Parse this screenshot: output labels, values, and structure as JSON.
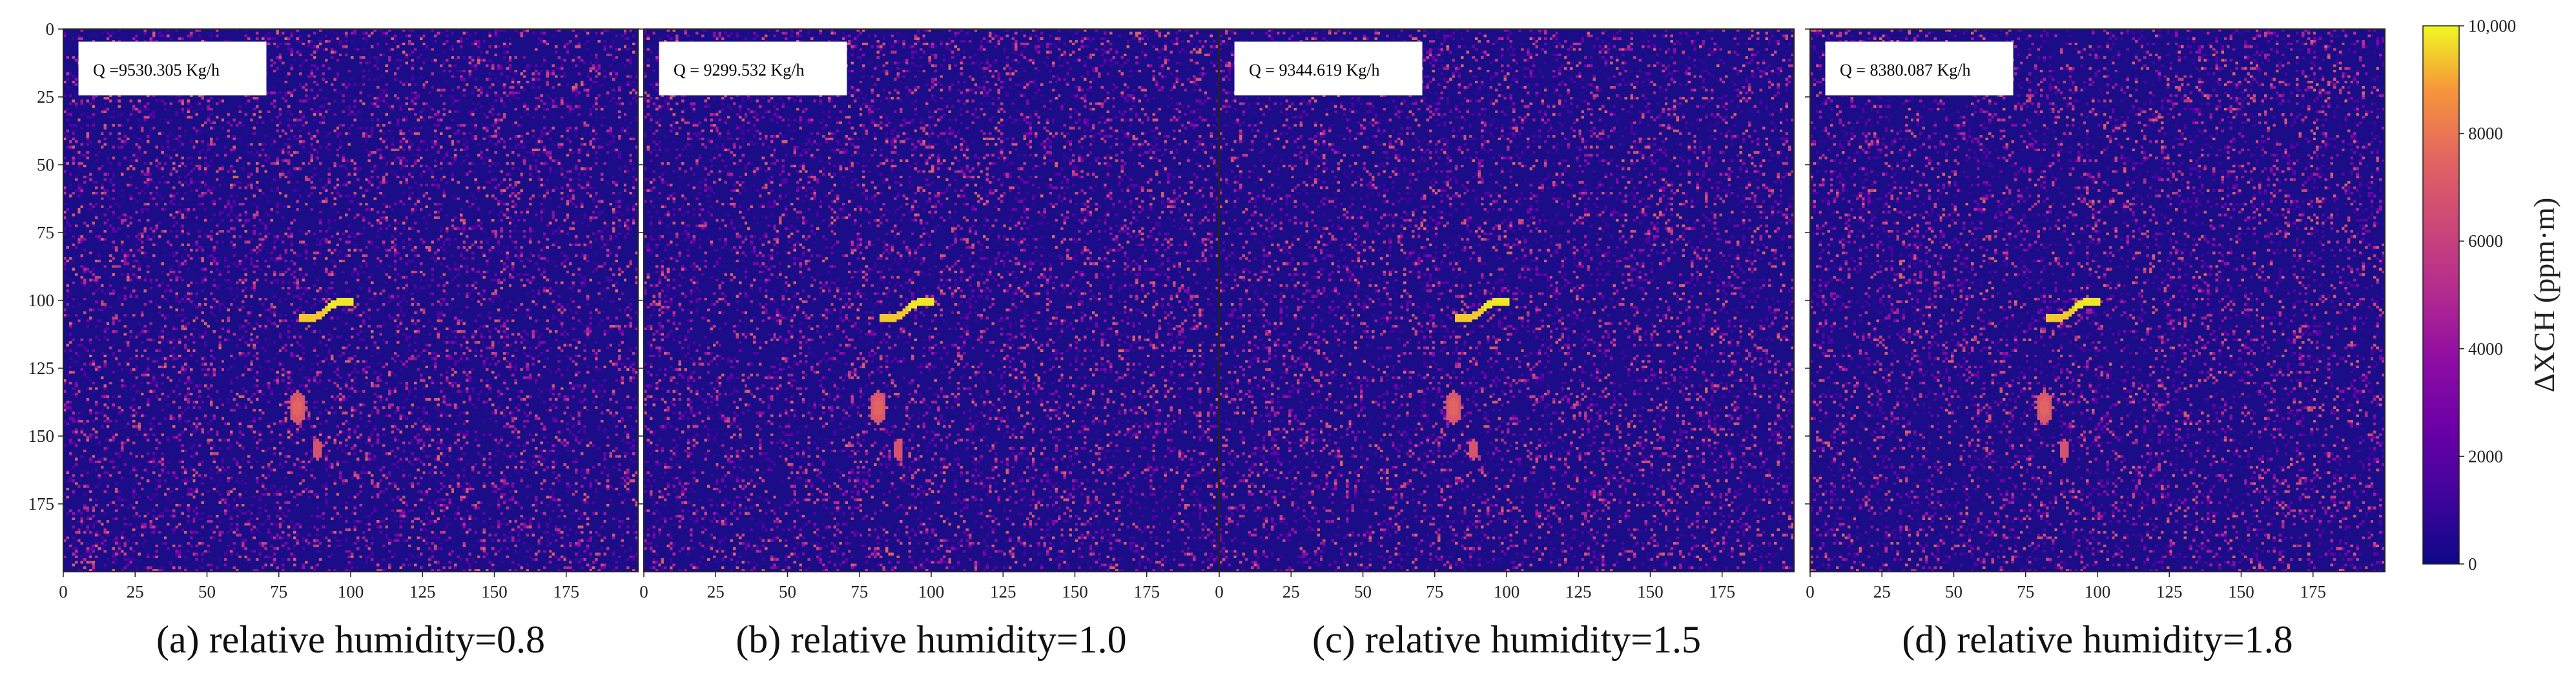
{
  "chart_data": {
    "type": "heatmap",
    "colormap": "plasma",
    "colorbar": {
      "label": "ΔXCH (ppm·m)",
      "range": [
        0,
        10000
      ],
      "ticks": [
        0,
        2000,
        4000,
        6000,
        8000,
        10000
      ],
      "tick_labels": [
        "0",
        "2000",
        "4000",
        "6000",
        "8000",
        "10,000"
      ]
    },
    "grid_size": [
      200,
      200
    ],
    "x_ticks": [
      0,
      25,
      50,
      75,
      100,
      125,
      150,
      175
    ],
    "y_ticks": [
      0,
      25,
      50,
      75,
      100,
      125,
      150,
      175
    ],
    "plume_features": [
      {
        "shape": "curved-streak",
        "x_range": [
          82,
          100
        ],
        "y_range": [
          99,
          107
        ],
        "value": 9600
      },
      {
        "shape": "blob",
        "x_range": [
          78,
          84
        ],
        "y_range": [
          133,
          145
        ],
        "value": 7000
      },
      {
        "shape": "blob",
        "x_range": [
          86,
          90
        ],
        "y_range": [
          151,
          158
        ],
        "value": 6800
      }
    ],
    "panels": [
      {
        "caption": "(a) relative humidity=0.8",
        "annotation": "Q =9530.305 Kg/h",
        "seed": 11
      },
      {
        "caption": "(b) relative humidity=1.0",
        "annotation": "Q = 9299.532 Kg/h",
        "seed": 23
      },
      {
        "caption": "(c) relative humidity=1.5",
        "annotation": "Q = 9344.619 Kg/h",
        "seed": 37
      },
      {
        "caption": "(d) relative humidity=1.8",
        "annotation": "Q = 8380.087 Kg/h",
        "seed": 53
      }
    ]
  }
}
